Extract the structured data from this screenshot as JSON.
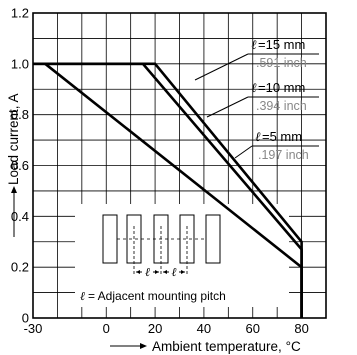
{
  "chart_data": {
    "type": "line",
    "xlabel": "Ambient temperature, °C",
    "ylabel": "Load current, A",
    "xlim": [
      -30,
      90
    ],
    "ylim": [
      0,
      1.2
    ],
    "x_ticks": [
      "-30",
      "0",
      "20",
      "40",
      "60",
      "80"
    ],
    "y_ticks": [
      "0",
      "0.2",
      "0.4",
      "0.6",
      "0.8",
      "1.0",
      "1.2"
    ],
    "grid": true,
    "series": [
      {
        "name": "15 mm",
        "x": [
          -30,
          20,
          80,
          80
        ],
        "y": [
          1.0,
          1.0,
          0.3,
          0
        ]
      },
      {
        "name": "10 mm",
        "x": [
          -30,
          15,
          80,
          80
        ],
        "y": [
          1.0,
          1.0,
          0.27,
          0
        ]
      },
      {
        "name": "5 mm",
        "x": [
          -25,
          80,
          80
        ],
        "y": [
          1.0,
          0.2,
          0
        ]
      }
    ],
    "labels": [
      {
        "series": "15 mm",
        "mm": "=15 mm",
        "inch": ".591 inch"
      },
      {
        "series": "10 mm",
        "mm": "=10 mm",
        "inch": ".394 inch"
      },
      {
        "series": "5 mm",
        "mm": "=5 mm",
        "inch": ".197 inch"
      }
    ],
    "ell_symbol": "ℓ",
    "inset_note": "= Adjacent mounting pitch"
  }
}
